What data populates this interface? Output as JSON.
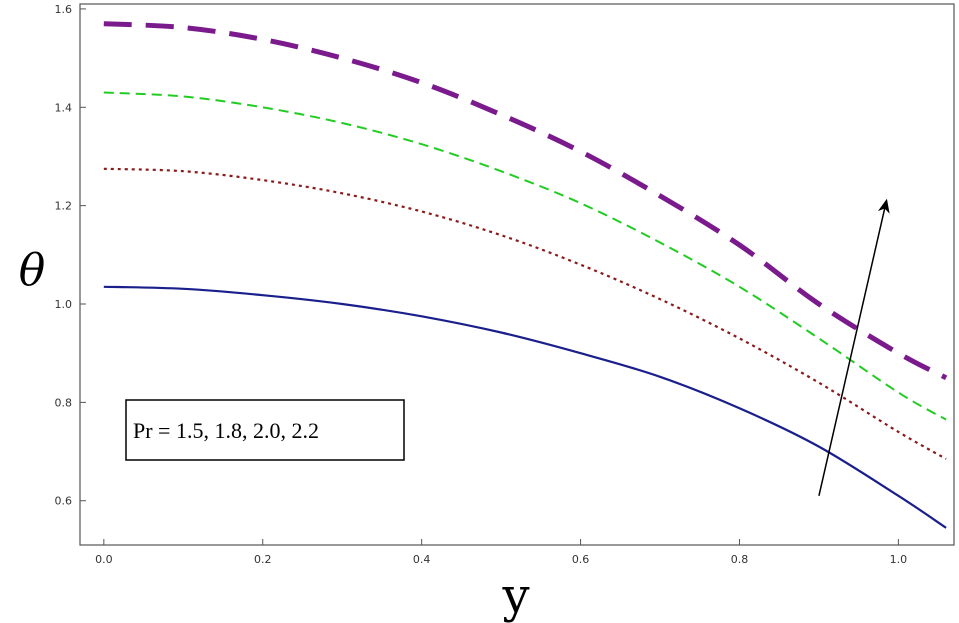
{
  "chart_data": {
    "type": "line",
    "xlabel": "y",
    "ylabel": "θ",
    "xlim": [
      -0.03,
      1.07
    ],
    "ylim": [
      0.51,
      1.61
    ],
    "x_ticks": [
      0.0,
      0.2,
      0.4,
      0.6,
      0.8,
      1.0
    ],
    "y_ticks": [
      0.6,
      0.8,
      1.0,
      1.2,
      1.4,
      1.6
    ],
    "x_tick_labels": [
      "0.0",
      "0.2",
      "0.4",
      "0.6",
      "0.8",
      "1.0"
    ],
    "y_tick_labels": [
      "0.6",
      "0.8",
      "1.0",
      "1.2",
      "1.4",
      "1.6"
    ],
    "grid": false,
    "annotation": "Pr = 1.5, 1.8, 2.0, 2.2",
    "arrow": {
      "from": [
        0.9,
        0.61
      ],
      "to": [
        0.985,
        1.21
      ]
    },
    "series": [
      {
        "style": "solid",
        "color": "#1a1f8c",
        "x": [
          0,
          0.1,
          0.2,
          0.3,
          0.4,
          0.5,
          0.6,
          0.7,
          0.8,
          0.9,
          1.0,
          1.06
        ],
        "y": [
          1.035,
          1.031,
          1.018,
          1.0,
          0.975,
          0.942,
          0.9,
          0.852,
          0.788,
          0.71,
          0.61,
          0.545
        ]
      },
      {
        "style": "dotted",
        "color": "#8b1a1a",
        "x": [
          0,
          0.1,
          0.2,
          0.3,
          0.4,
          0.5,
          0.6,
          0.7,
          0.8,
          0.9,
          1.0,
          1.06
        ],
        "y": [
          1.275,
          1.27,
          1.252,
          1.225,
          1.188,
          1.14,
          1.08,
          1.01,
          0.93,
          0.84,
          0.74,
          0.685
        ]
      },
      {
        "style": "dashed",
        "color": "#22cc22",
        "x": [
          0,
          0.1,
          0.2,
          0.3,
          0.4,
          0.5,
          0.6,
          0.7,
          0.8,
          0.9,
          1.0,
          1.06
        ],
        "y": [
          1.43,
          1.422,
          1.4,
          1.368,
          1.325,
          1.27,
          1.205,
          1.125,
          1.035,
          0.93,
          0.82,
          0.765
        ]
      },
      {
        "style": "longdash",
        "color": "#7a1a8c",
        "x": [
          0,
          0.1,
          0.2,
          0.3,
          0.4,
          0.5,
          0.6,
          0.7,
          0.8,
          0.9,
          1.0,
          1.06
        ],
        "y": [
          1.57,
          1.562,
          1.538,
          1.5,
          1.45,
          1.385,
          1.31,
          1.22,
          1.12,
          1.0,
          0.9,
          0.85
        ]
      }
    ]
  }
}
